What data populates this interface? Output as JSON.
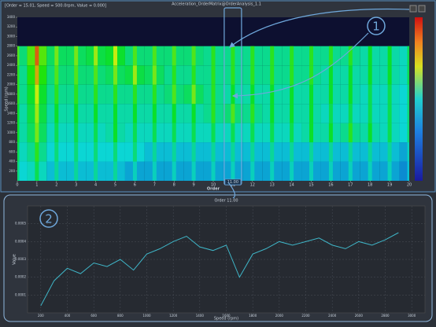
{
  "header": {
    "cursor": "[Order = 15.01, Speed = 500.0rpm, Value = 0.000]",
    "title": "Acceleration_OrderMatrix@OrderAnalysis_1.1"
  },
  "callouts": [
    "1",
    "2"
  ],
  "chart_data": [
    {
      "type": "heatmap",
      "xlabel": "Order",
      "ylabel": "Speed (rpm)",
      "x": [
        0,
        1,
        2,
        3,
        4,
        5,
        6,
        7,
        8,
        9,
        10,
        11,
        12,
        13,
        14,
        15,
        16,
        17,
        18,
        19,
        20
      ],
      "y": [
        200,
        600,
        1000,
        1400,
        1800,
        2200,
        2600
      ],
      "values": [
        [
          0.35,
          0.4,
          0.3,
          0.3,
          0.3,
          0.3,
          0.25,
          0.25,
          0.25,
          0.25,
          0.25,
          0.25,
          0.25,
          0.25,
          0.25,
          0.25,
          0.25,
          0.25,
          0.25,
          0.25,
          0.2
        ],
        [
          0.4,
          0.5,
          0.35,
          0.35,
          0.35,
          0.35,
          0.35,
          0.3,
          0.3,
          0.3,
          0.3,
          0.3,
          0.3,
          0.3,
          0.3,
          0.3,
          0.3,
          0.3,
          0.3,
          0.3,
          0.25
        ],
        [
          0.45,
          0.6,
          0.4,
          0.4,
          0.4,
          0.45,
          0.4,
          0.4,
          0.4,
          0.4,
          0.4,
          0.4,
          0.4,
          0.4,
          0.4,
          0.45,
          0.45,
          0.5,
          0.45,
          0.4,
          0.35
        ],
        [
          0.45,
          0.65,
          0.45,
          0.45,
          0.45,
          0.45,
          0.45,
          0.45,
          0.45,
          0.45,
          0.5,
          0.55,
          0.5,
          0.45,
          0.45,
          0.45,
          0.4,
          0.4,
          0.4,
          0.4,
          0.35
        ],
        [
          0.5,
          0.7,
          0.5,
          0.5,
          0.5,
          0.5,
          0.5,
          0.5,
          0.55,
          0.6,
          0.5,
          0.45,
          0.45,
          0.45,
          0.45,
          0.45,
          0.45,
          0.45,
          0.4,
          0.4,
          0.35
        ],
        [
          0.5,
          0.8,
          0.55,
          0.55,
          0.55,
          0.6,
          0.65,
          0.6,
          0.5,
          0.5,
          0.5,
          0.5,
          0.5,
          0.5,
          0.5,
          0.5,
          0.45,
          0.45,
          0.45,
          0.45,
          0.4
        ],
        [
          0.55,
          0.9,
          0.6,
          0.6,
          0.65,
          0.7,
          0.55,
          0.55,
          0.55,
          0.55,
          0.5,
          0.5,
          0.5,
          0.5,
          0.5,
          0.5,
          0.5,
          0.5,
          0.45,
          0.45,
          0.4
        ]
      ],
      "xlim": [
        0,
        20
      ],
      "ylim": [
        0,
        3400
      ],
      "xticks": [
        0,
        1,
        2,
        3,
        4,
        5,
        6,
        7,
        8,
        9,
        10,
        11,
        12,
        13,
        14,
        15,
        16,
        17,
        18,
        19,
        20
      ],
      "yticks": [
        200,
        400,
        600,
        800,
        1000,
        1200,
        1400,
        1600,
        1800,
        2000,
        2200,
        2400,
        2600,
        2800,
        3000,
        3200,
        3400
      ],
      "selected": {
        "value": 11,
        "label": "11.00"
      }
    },
    {
      "type": "line",
      "title": "Order 11.00",
      "xlabel": "Speed (rpm)",
      "ylabel": "Value",
      "color": "#3fb6c8",
      "x": [
        200,
        300,
        400,
        500,
        600,
        700,
        800,
        900,
        1000,
        1100,
        1200,
        1300,
        1400,
        1500,
        1600,
        1700,
        1800,
        1900,
        2000,
        2100,
        2200,
        2300,
        2400,
        2500,
        2600,
        2700,
        2800,
        2900
      ],
      "values": [
        4e-05,
        0.00018,
        0.00025,
        0.00022,
        0.00028,
        0.00026,
        0.0003,
        0.00024,
        0.00033,
        0.00036,
        0.0004,
        0.00043,
        0.00037,
        0.00035,
        0.00038,
        0.0002,
        0.00033,
        0.00036,
        0.0004,
        0.00038,
        0.0004,
        0.00042,
        0.00038,
        0.00036,
        0.0004,
        0.00038,
        0.00041,
        0.00045
      ],
      "xlim": [
        100,
        3100
      ],
      "ylim": [
        0,
        0.0006
      ],
      "xticks": [
        200,
        400,
        600,
        800,
        1000,
        1200,
        1400,
        1600,
        1800,
        2000,
        2200,
        2400,
        2600,
        2800,
        3000
      ],
      "yticks": [
        0.0001,
        0.0002,
        0.0003,
        0.0004,
        0.0005
      ],
      "grid": true
    }
  ]
}
